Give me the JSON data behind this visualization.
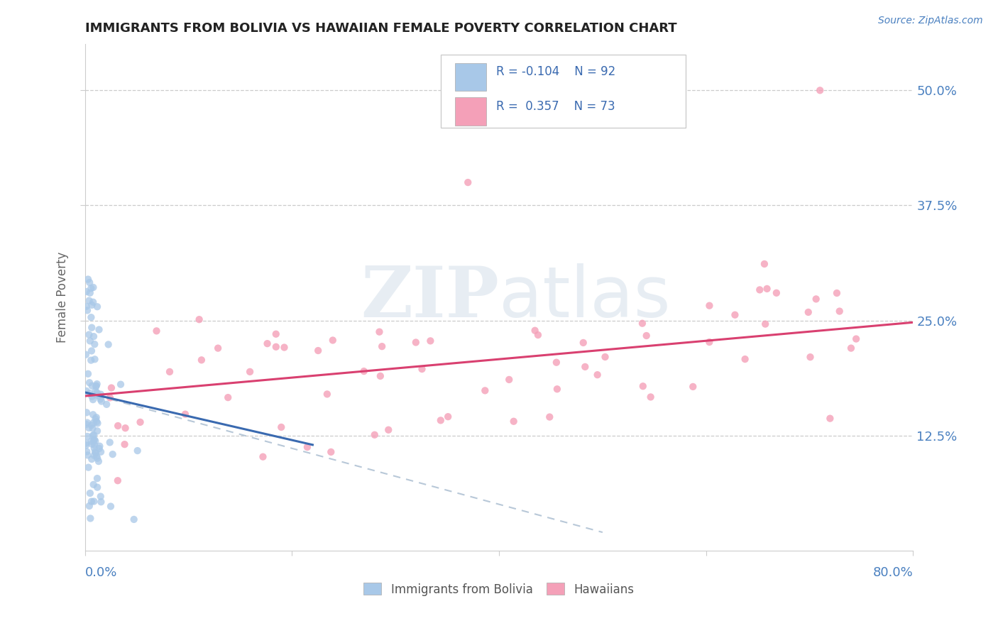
{
  "title": "IMMIGRANTS FROM BOLIVIA VS HAWAIIAN FEMALE POVERTY CORRELATION CHART",
  "source_text": "Source: ZipAtlas.com",
  "ylabel": "Female Poverty",
  "legend1_R": "-0.104",
  "legend1_N": "92",
  "legend2_R": "0.357",
  "legend2_N": "73",
  "legend_label1": "Immigrants from Bolivia",
  "legend_label2": "Hawaiians",
  "color_blue": "#a8c8e8",
  "color_pink": "#f4a0b8",
  "color_blue_line": "#3a6ab0",
  "color_pink_line": "#d94070",
  "color_dashed_line": "#b8c8d8",
  "watermark_zip": "ZIP",
  "watermark_atlas": "atlas",
  "title_color": "#222222",
  "axis_color": "#4a80c0",
  "legend_text_color": "#3a6ab0",
  "xlim": [
    0.0,
    0.8
  ],
  "ylim": [
    0.0,
    0.55
  ],
  "y_ticks": [
    0.125,
    0.25,
    0.375,
    0.5
  ],
  "y_tick_labels": [
    "12.5%",
    "25.0%",
    "37.5%",
    "50.0%"
  ],
  "blue_line_x": [
    0.0,
    0.22
  ],
  "blue_line_y": [
    0.172,
    0.115
  ],
  "dashed_line_x": [
    0.0,
    0.5
  ],
  "dashed_line_y": [
    0.172,
    0.02
  ],
  "pink_line_x": [
    0.0,
    0.8
  ],
  "pink_line_y": [
    0.168,
    0.248
  ]
}
